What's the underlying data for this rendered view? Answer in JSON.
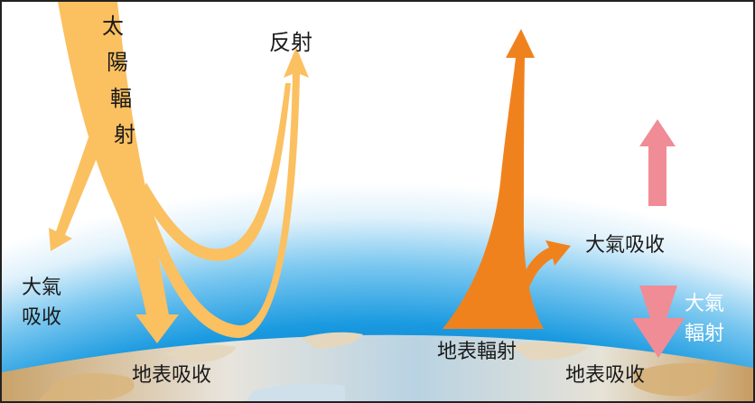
{
  "labels": {
    "solar_radiation": [
      "太",
      "陽",
      "輻",
      "射"
    ],
    "reflection": "反射",
    "atmos_absorb_left": [
      "大氣",
      "吸收"
    ],
    "surface_absorb_left": "地表吸收",
    "surface_radiation": "地表輻射",
    "atmos_absorb_right": "大氣吸收",
    "atmos_radiation": [
      "大氣",
      "輻射"
    ],
    "surface_absorb_right": "地表吸收"
  },
  "colors": {
    "solar_arrow": "#fbc060",
    "surface_radiation_arrow": "#f0821e",
    "atmos_radiation_arrow": "#f08c96",
    "atmosphere_blue": "#1a9ae0",
    "ocean": "#b8d4e4",
    "land": "#c9a36a"
  }
}
